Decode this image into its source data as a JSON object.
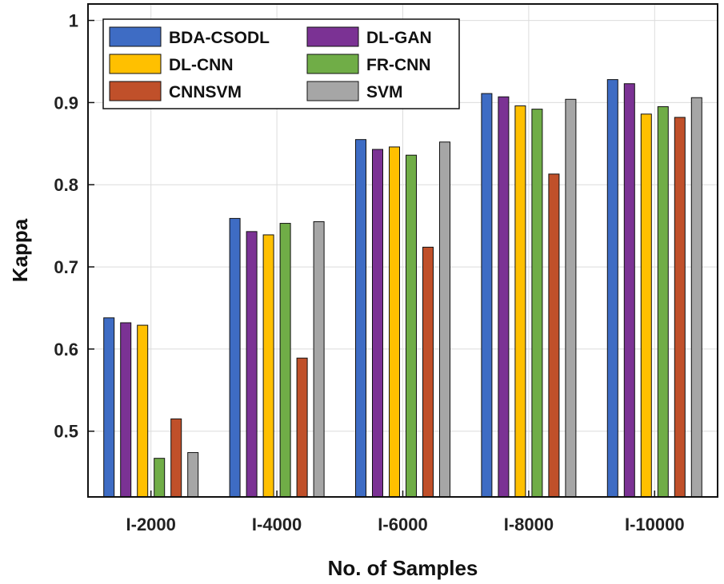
{
  "chart_data": {
    "type": "bar",
    "title": "",
    "xlabel": "No. of Samples",
    "ylabel": "Kappa",
    "ylim": [
      0.42,
      1.02
    ],
    "yticks": [
      0.5,
      0.6,
      0.7,
      0.8,
      0.9,
      1
    ],
    "ytick_labels": [
      "0.5",
      "0.6",
      "0.7",
      "0.8",
      "0.9",
      "1"
    ],
    "grid": true,
    "legend_position": "top-left",
    "categories": [
      "I-2000",
      "I-4000",
      "I-6000",
      "I-8000",
      "I-10000"
    ],
    "series": [
      {
        "name": "BDA-CSODL",
        "color": "#3E6CC4",
        "values": [
          0.638,
          0.759,
          0.855,
          0.911,
          0.928
        ]
      },
      {
        "name": "DL-GAN",
        "color": "#7B3294",
        "values": [
          0.632,
          0.743,
          0.843,
          0.907,
          0.923
        ]
      },
      {
        "name": "DL-CNN",
        "color": "#FFC000",
        "values": [
          0.629,
          0.739,
          0.846,
          0.896,
          0.886
        ]
      },
      {
        "name": "FR-CNN",
        "color": "#70AD47",
        "values": [
          0.467,
          0.753,
          0.836,
          0.892,
          0.895
        ]
      },
      {
        "name": "CNNSVM",
        "color": "#C0502A",
        "values": [
          0.515,
          0.589,
          0.724,
          0.813,
          0.882
        ]
      },
      {
        "name": "SVM",
        "color": "#A6A6A6",
        "values": [
          0.474,
          0.755,
          0.852,
          0.904,
          0.906
        ]
      }
    ]
  }
}
